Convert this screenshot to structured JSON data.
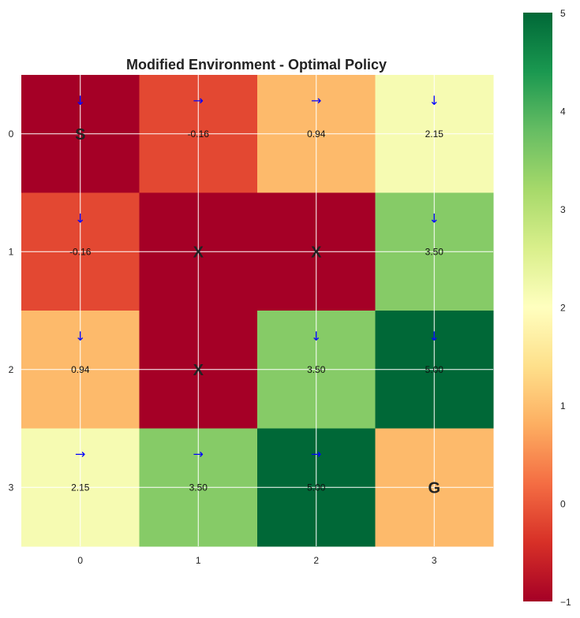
{
  "chart_data": {
    "type": "heatmap",
    "title": "Modified Environment - Optimal Policy",
    "x_ticks": [
      "0",
      "1",
      "2",
      "3"
    ],
    "y_ticks": [
      "0",
      "1",
      "2",
      "3"
    ],
    "cells": [
      [
        {
          "value": -1.0,
          "label": "S",
          "label_type": "marker",
          "arrow": "↓"
        },
        {
          "value": -0.16,
          "label": "-0.16",
          "label_type": "value",
          "arrow": "→"
        },
        {
          "value": 0.94,
          "label": "0.94",
          "label_type": "value",
          "arrow": "→"
        },
        {
          "value": 2.15,
          "label": "2.15",
          "label_type": "value",
          "arrow": "↓"
        }
      ],
      [
        {
          "value": -0.16,
          "label": "-0.16",
          "label_type": "value",
          "arrow": "↓"
        },
        {
          "value": -1.0,
          "label": "X",
          "label_type": "marker",
          "arrow": ""
        },
        {
          "value": -1.0,
          "label": "X",
          "label_type": "marker",
          "arrow": ""
        },
        {
          "value": 3.5,
          "label": "3.50",
          "label_type": "value",
          "arrow": "↓"
        }
      ],
      [
        {
          "value": 0.94,
          "label": "0.94",
          "label_type": "value",
          "arrow": "↓"
        },
        {
          "value": -1.0,
          "label": "X",
          "label_type": "marker",
          "arrow": ""
        },
        {
          "value": 3.5,
          "label": "3.50",
          "label_type": "value",
          "arrow": "↓"
        },
        {
          "value": 5.0,
          "label": "5.00",
          "label_type": "value",
          "arrow": "↓"
        }
      ],
      [
        {
          "value": 2.15,
          "label": "2.15",
          "label_type": "value",
          "arrow": "→"
        },
        {
          "value": 3.5,
          "label": "3.50",
          "label_type": "value",
          "arrow": "→"
        },
        {
          "value": 5.0,
          "label": "5.00",
          "label_type": "value",
          "arrow": "→"
        },
        {
          "value": 0.94,
          "label": "G",
          "label_type": "marker",
          "arrow": ""
        }
      ]
    ],
    "colorbar": {
      "colormap": "RdYlGn",
      "min": -1.0,
      "max": 5.0,
      "ticks": [
        "−1",
        "0",
        "1",
        "2",
        "3",
        "4",
        "5"
      ],
      "tick_values": [
        -1,
        0,
        1,
        2,
        3,
        4,
        5
      ]
    },
    "grid": true,
    "arrow_color": "#0000ff"
  }
}
